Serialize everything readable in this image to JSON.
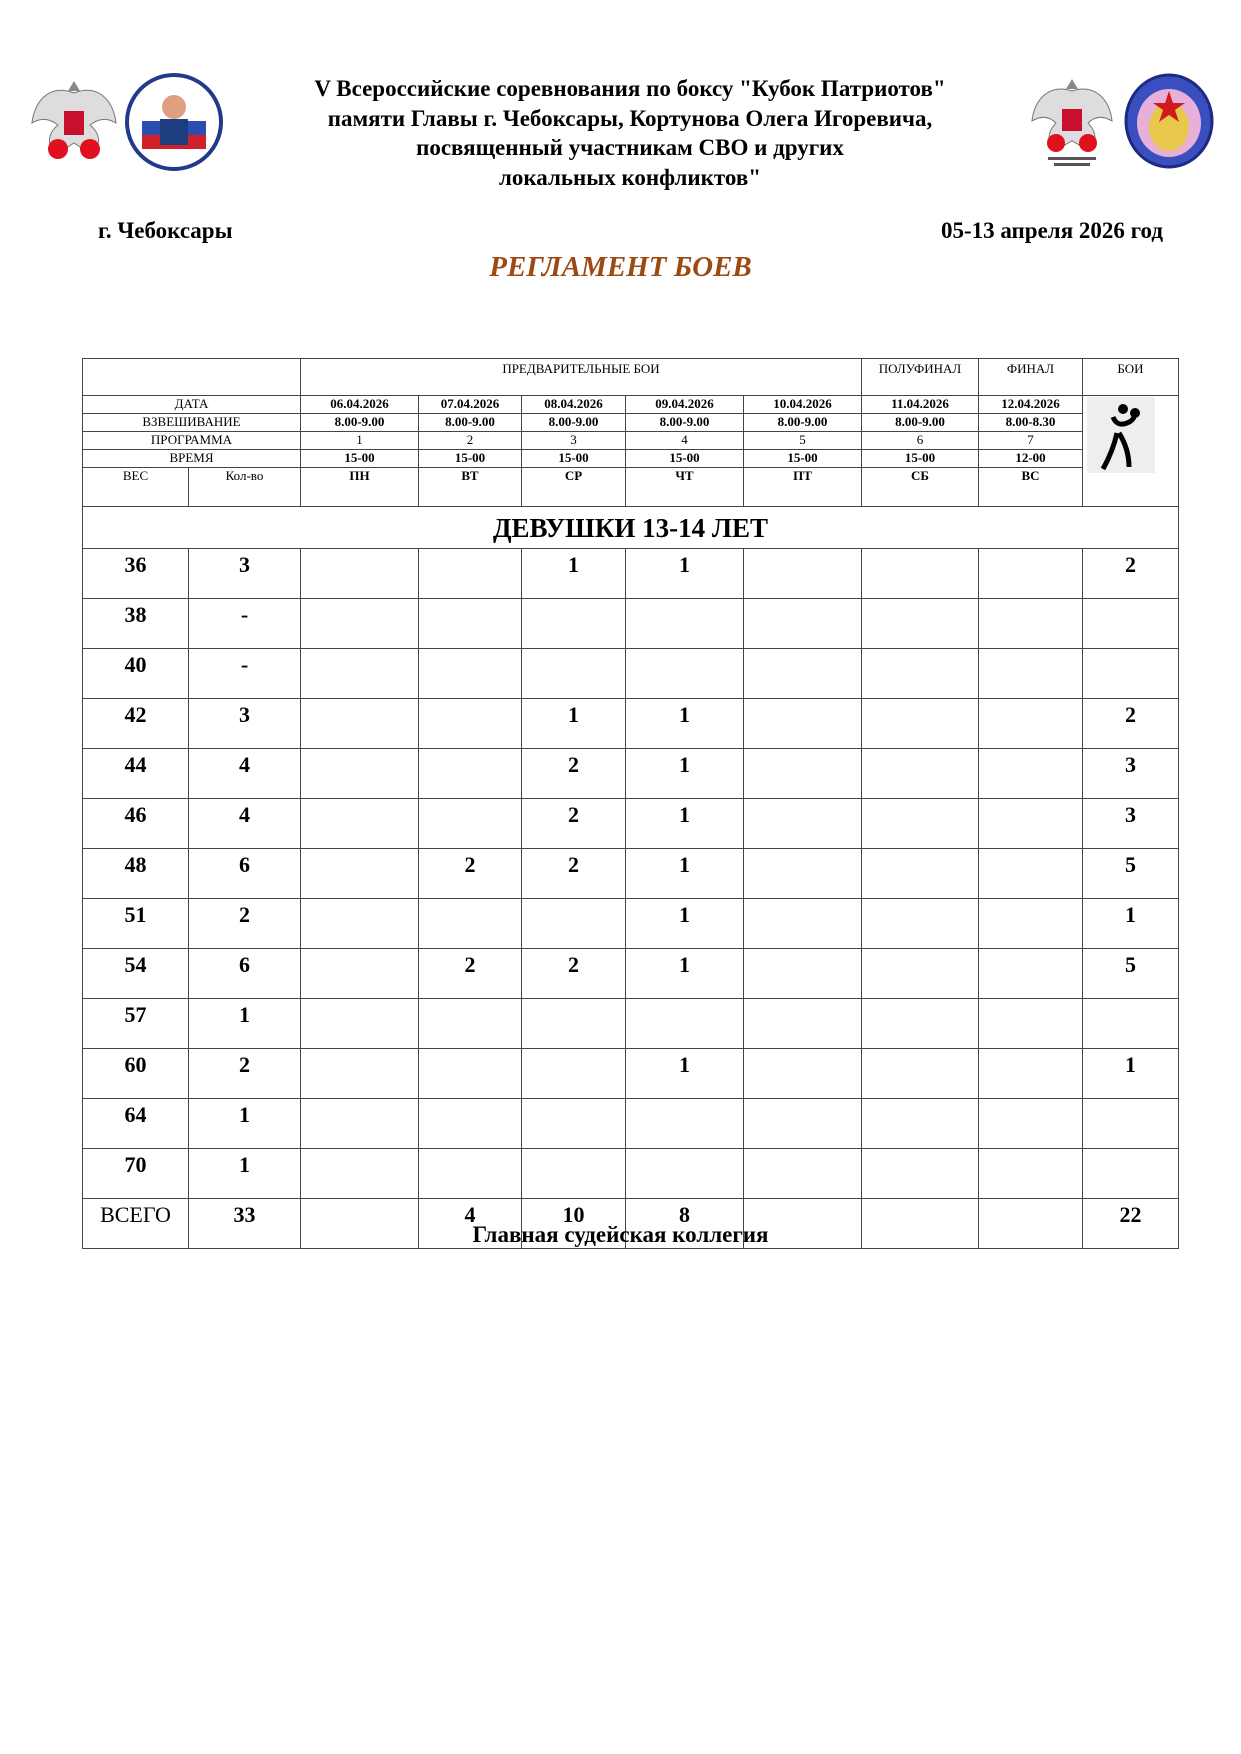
{
  "header": {
    "title_lines": [
      "V Всероссийские соревнования по боксу \"Кубок Патриотов\"",
      "памяти Главы г. Чебоксары, Кортунова Олега Игоревича,",
      "посвященный участникам СВО и других",
      "локальных конфликтов\""
    ],
    "city": "г. Чебоксары",
    "dates": "05-13 апреля 2026 год",
    "doc_title": "РЕГЛАМЕНТ БОЕВ",
    "title_color": "#9c4a12",
    "logos": {
      "left_patriot_cup": "КУБОК ПАТРИОТОВ",
      "right_federation": "ФЕДЕРАЦИЯ БОКСА ЧУВАШИИ"
    }
  },
  "table": {
    "stage_headers": [
      "ПРЕДВАРИТЕЛЬНЫЕ БОИ",
      "ПОЛУФИНАЛ",
      "ФИНАЛ",
      "БОИ"
    ],
    "row_labels": {
      "date": "ДАТА",
      "weighing": "ВЗВЕШИВАНИЕ",
      "program": "ПРОГРАММА",
      "time": "ВРЕМЯ",
      "weight": "ВЕС",
      "count": "Кол-во"
    },
    "dates": [
      "06.04.2026",
      "07.04.2026",
      "08.04.2026",
      "09.04.2026",
      "10.04.2026",
      "11.04.2026",
      "12.04.2026"
    ],
    "weighing": [
      "8.00-9.00",
      "8.00-9.00",
      "8.00-9.00",
      "8.00-9.00",
      "8.00-9.00",
      "8.00-9.00",
      "8.00-8.30"
    ],
    "program": [
      "1",
      "2",
      "3",
      "4",
      "5",
      "6",
      "7"
    ],
    "time": [
      "15-00",
      "15-00",
      "15-00",
      "15-00",
      "15-00",
      "15-00",
      "12-00"
    ],
    "weekdays": [
      "ПН",
      "ВТ",
      "СР",
      "ЧТ",
      "ПТ",
      "СБ",
      "ВС"
    ],
    "boxing_icon": "boxer-pictogram-icon",
    "section": "ДЕВУШКИ  13-14 ЛЕТ",
    "rows": [
      [
        "36",
        "3",
        "",
        "",
        "1",
        "1",
        "",
        "",
        "",
        "2"
      ],
      [
        "38",
        "-",
        "",
        "",
        "",
        "",
        "",
        "",
        "",
        ""
      ],
      [
        "40",
        "-",
        "",
        "",
        "",
        "",
        "",
        "",
        "",
        ""
      ],
      [
        "42",
        "3",
        "",
        "",
        "1",
        "1",
        "",
        "",
        "",
        "2"
      ],
      [
        "44",
        "4",
        "",
        "",
        "2",
        "1",
        "",
        "",
        "",
        "3"
      ],
      [
        "46",
        "4",
        "",
        "",
        "2",
        "1",
        "",
        "",
        "",
        "3"
      ],
      [
        "48",
        "6",
        "",
        "2",
        "2",
        "1",
        "",
        "",
        "",
        "5"
      ],
      [
        "51",
        "2",
        "",
        "",
        "",
        "1",
        "",
        "",
        "",
        "1"
      ],
      [
        "54",
        "6",
        "",
        "2",
        "2",
        "1",
        "",
        "",
        "",
        "5"
      ],
      [
        "57",
        "1",
        "",
        "",
        "",
        "",
        "",
        "",
        "",
        ""
      ],
      [
        "60",
        "2",
        "",
        "",
        "",
        "1",
        "",
        "",
        "",
        "1"
      ],
      [
        "64",
        "1",
        "",
        "",
        "",
        "",
        "",
        "",
        "",
        ""
      ],
      [
        "70",
        "1",
        "",
        "",
        "",
        "",
        "",
        "",
        "",
        ""
      ]
    ],
    "total": [
      "ВСЕГО",
      "33",
      "",
      "4",
      "10",
      "8",
      "",
      "",
      "",
      "22"
    ]
  },
  "footer": "Главная судейская коллегия"
}
